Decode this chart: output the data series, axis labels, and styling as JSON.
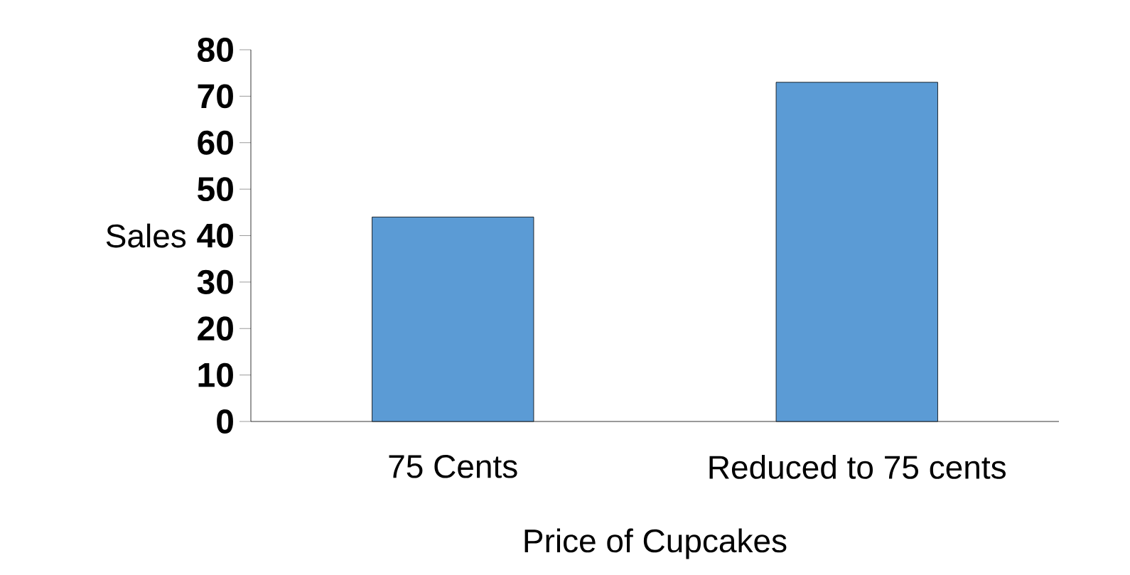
{
  "chart_data": {
    "type": "bar",
    "xlabel": "Price of Cupcakes",
    "ylabel": "Sales",
    "categories": [
      "75 Cents",
      "Reduced to 75 cents"
    ],
    "values": [
      44,
      73
    ],
    "color": "#5b9bd5",
    "ylim": [
      0,
      80
    ],
    "yticks": [
      0,
      10,
      20,
      30,
      40,
      50,
      60,
      70,
      80
    ]
  }
}
